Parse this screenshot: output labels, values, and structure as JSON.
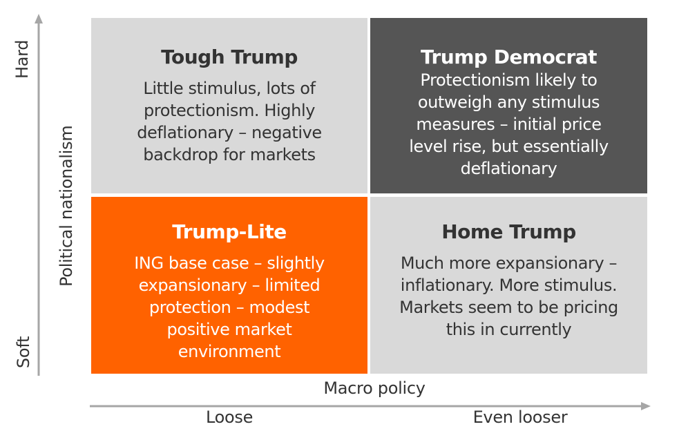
{
  "quadrants": {
    "top_left": {
      "title": "Tough Trump",
      "lines": [
        "Little stimulus, lots of",
        "protectionism. Highly",
        "deflationary – negative",
        "backdrop for markets"
      ]
    },
    "top_right": {
      "title": "Trump Democrat",
      "lines": [
        "Protectionism likely to",
        "outweigh any stimulus",
        "measures – initial price",
        "level rise, but essentially",
        "deflationary"
      ]
    },
    "bottom_left": {
      "title": "Trump-Lite",
      "lines": [
        "ING base case – slightly",
        "expansionary – limited",
        "protection – modest",
        "positive market",
        "environment"
      ]
    },
    "bottom_right": {
      "title": "Home Trump",
      "lines": [
        "Much more expansionary –",
        "inflationary. More stimulus.",
        "Markets seem to be pricing",
        "this in currently"
      ]
    }
  },
  "y_axis": {
    "label": "Political nationalism",
    "top_end": "Hard",
    "bottom_end": "Soft"
  },
  "x_axis": {
    "label": "Macro policy",
    "left_tick": "Loose",
    "right_tick": "Even looser"
  },
  "colors": {
    "light_grey": "#d9d9d9",
    "dark_grey": "#555555",
    "orange": "#ff6200",
    "axis": "#999999",
    "text": "#333333"
  }
}
